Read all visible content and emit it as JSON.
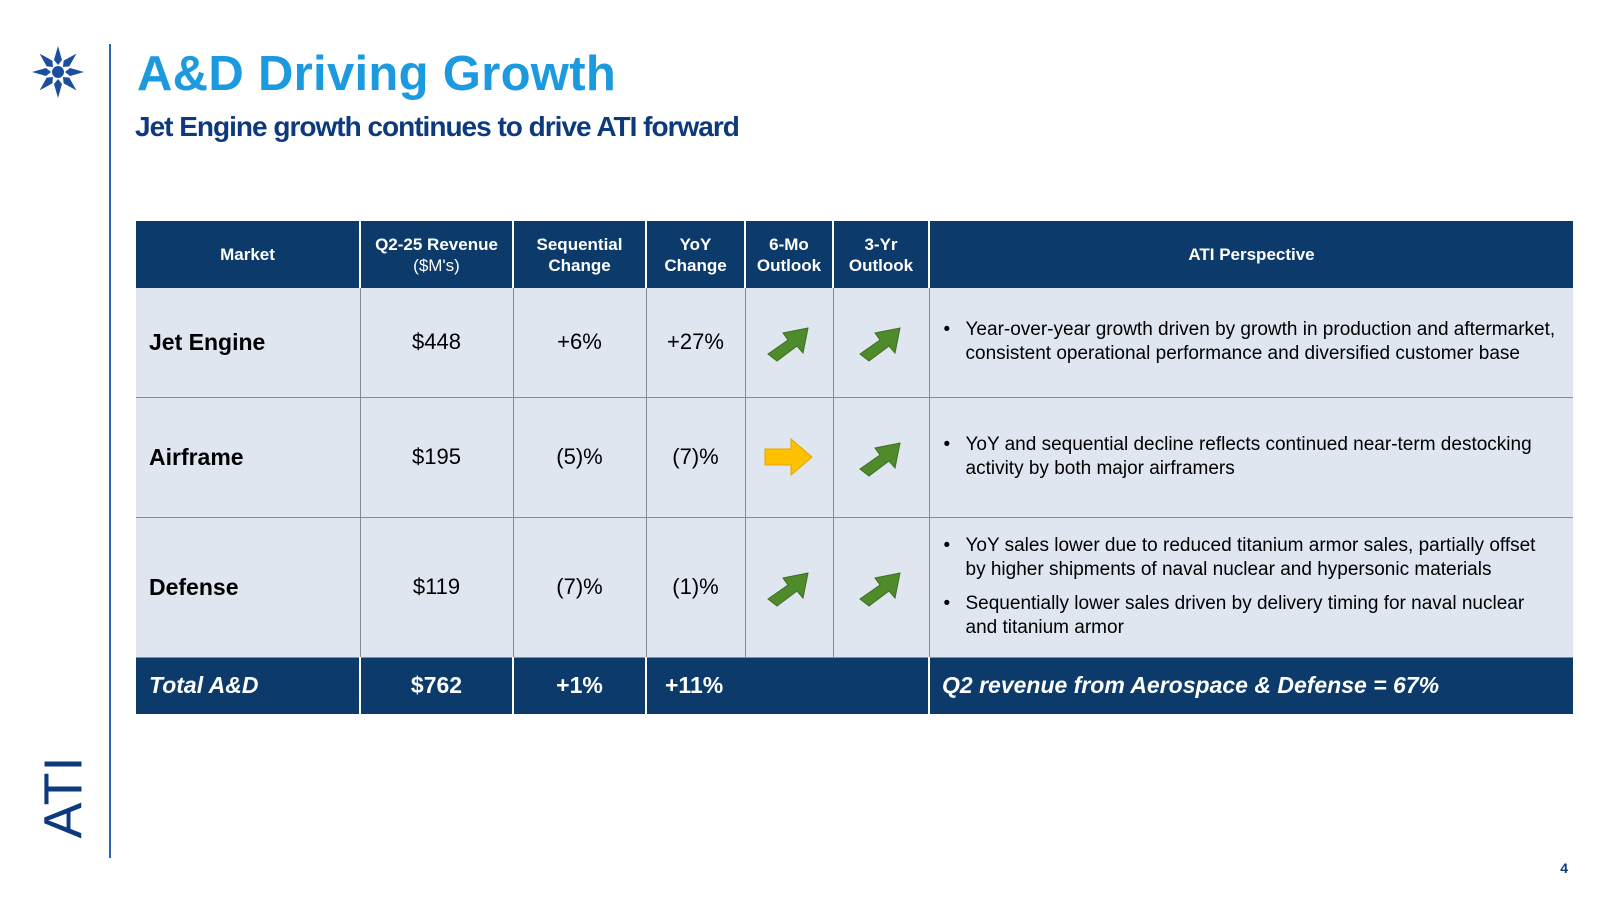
{
  "header": {
    "title": "A&D Driving Growth",
    "subtitle": "Jet Engine growth continues to drive ATI forward"
  },
  "logo": {
    "wordmark": "ATI",
    "star_icon": "snowflake-star-icon",
    "color": "#1b4f9c"
  },
  "colors": {
    "title": "#1b9ae0",
    "navy": "#0c3a6b",
    "row_bg": "#dfe6f0",
    "arrow_green": "#4f8a2b",
    "arrow_yellow": "#ffc000"
  },
  "table": {
    "headers": {
      "market": "Market",
      "revenue": "Q2-25 Revenue",
      "revenue_unit": "($M's)",
      "sequential_1": "Sequential",
      "sequential_2": "Change",
      "yoy_1": "YoY",
      "yoy_2": "Change",
      "six_mo_1": "6-Mo",
      "six_mo_2": "Outlook",
      "three_yr_1": "3-Yr",
      "three_yr_2": "Outlook",
      "perspective": "ATI Perspective"
    },
    "rows": [
      {
        "market": "Jet Engine",
        "revenue": "$448",
        "sequential": "+6%",
        "yoy": "+27%",
        "outlook_6mo": "up-right-green",
        "outlook_3yr": "up-right-green",
        "perspective": [
          "Year-over-year growth driven by growth in production and aftermarket, consistent operational performance and diversified customer base"
        ]
      },
      {
        "market": "Airframe",
        "revenue": "$195",
        "sequential": "(5)%",
        "yoy": "(7)%",
        "outlook_6mo": "right-yellow",
        "outlook_3yr": "up-right-green",
        "perspective": [
          "YoY and sequential decline reflects continued near-term destocking activity by both major airframers"
        ]
      },
      {
        "market": "Defense",
        "revenue": "$119",
        "sequential": "(7)%",
        "yoy": "(1)%",
        "outlook_6mo": "up-right-green",
        "outlook_3yr": "up-right-green",
        "perspective": [
          "YoY sales lower due to reduced titanium armor sales, partially offset by higher shipments of naval nuclear and hypersonic materials",
          "Sequentially lower sales driven by delivery timing for naval nuclear and titanium armor"
        ]
      }
    ],
    "total": {
      "market": "Total A&D",
      "revenue": "$762",
      "sequential": "+1%",
      "yoy": "+11%",
      "note": "Q2 revenue from Aerospace & Defense = 67%"
    }
  },
  "page_number": "4"
}
